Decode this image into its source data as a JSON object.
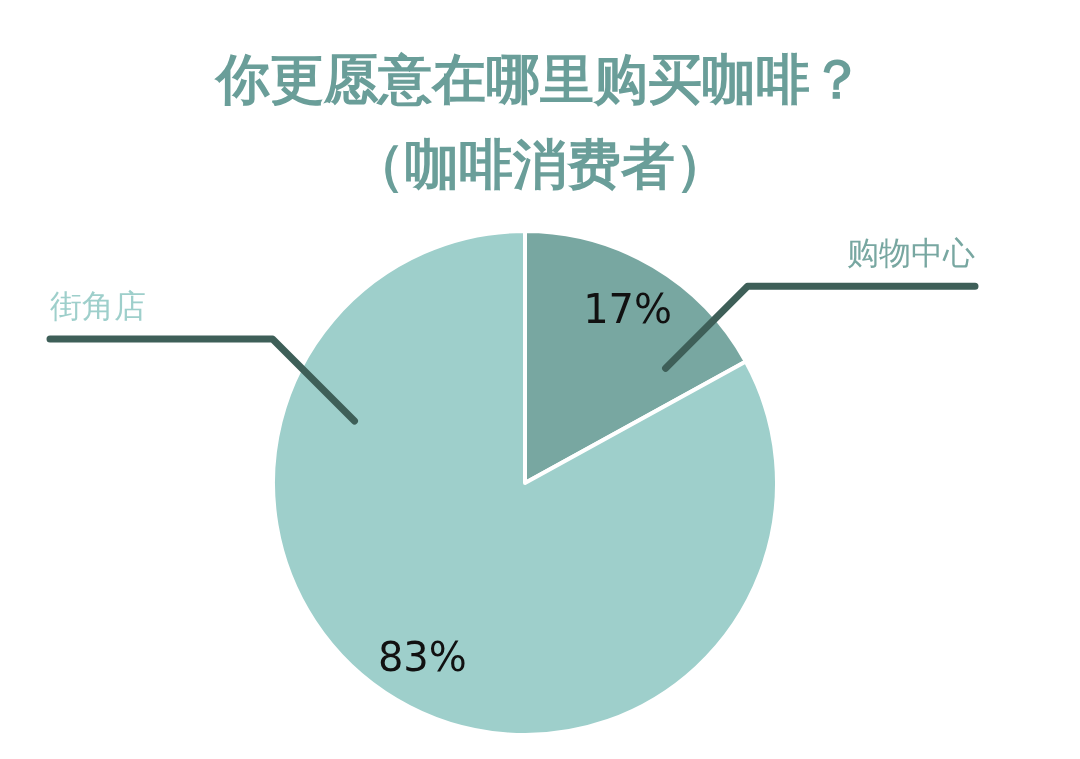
{
  "chart_data": {
    "type": "pie",
    "title": "你更愿意在哪里购买咖啡？",
    "subtitle": "（咖啡消费者）",
    "value_labels": [
      "17%",
      "83%"
    ],
    "categories": [
      "购物中心",
      "街角店"
    ],
    "values": [
      17,
      83
    ],
    "colors": [
      "#78a7a1",
      "#9ecfcb"
    ]
  }
}
